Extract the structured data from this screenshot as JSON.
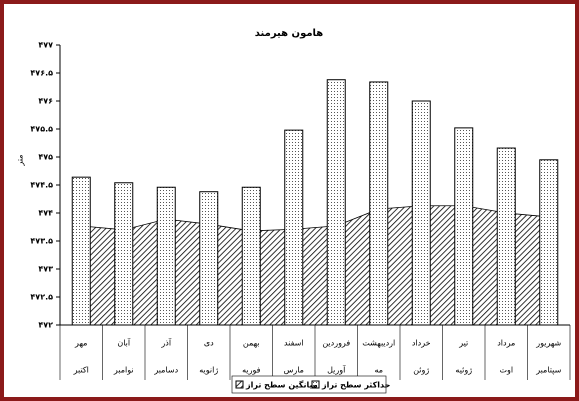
{
  "chart_data": {
    "type": "bar",
    "title": "هامون هیرمند",
    "y_label": "متر",
    "categories": [
      "مهر",
      "آبان",
      "آذر",
      "دی",
      "بهمن",
      "اسفند",
      "فروردین",
      "اردیبهشت",
      "خرداد",
      "تیر",
      "مرداد",
      "شهریور"
    ],
    "categories_secondary": [
      "اکتبر",
      "نوامبر",
      "دسامبر",
      "ژانویه",
      "فوریه",
      "مارس",
      "آوریل",
      "مه",
      "ژوئن",
      "ژوئیه",
      "اوت",
      "سپتامبر"
    ],
    "series": [
      {
        "name": "حداکثر سطح تراز",
        "type": "bar",
        "color": "#000000",
        "values": [
          474.64,
          474.54,
          474.46,
          474.38,
          474.46,
          475.48,
          476.38,
          476.34,
          476.0,
          475.52,
          475.16,
          474.95
        ]
      },
      {
        "name": "میانگین سطح تراز",
        "type": "area",
        "color": "#000000",
        "values": [
          473.77,
          473.7,
          473.89,
          473.8,
          473.68,
          473.71,
          473.77,
          474.07,
          474.13,
          474.13,
          474.0,
          473.93
        ]
      }
    ],
    "ylim": [
      472,
      477
    ],
    "yticks": [
      {
        "value": 472,
        "label": "۴۷۲"
      },
      {
        "value": 472.5,
        "label": "۴۷۲.۵"
      },
      {
        "value": 473,
        "label": "۴۷۳"
      },
      {
        "value": 473.5,
        "label": "۴۷۳.۵"
      },
      {
        "value": 474,
        "label": "۴۷۴"
      },
      {
        "value": 474.5,
        "label": "۴۷۴.۵"
      },
      {
        "value": 475,
        "label": "۴۷۵"
      },
      {
        "value": 475.5,
        "label": "۴۷۵.۵"
      },
      {
        "value": 476,
        "label": "۴۷۶"
      },
      {
        "value": 476.5,
        "label": "۴۷۶.۵"
      },
      {
        "value": 477,
        "label": "۴۷۷"
      }
    ],
    "grid": false
  }
}
